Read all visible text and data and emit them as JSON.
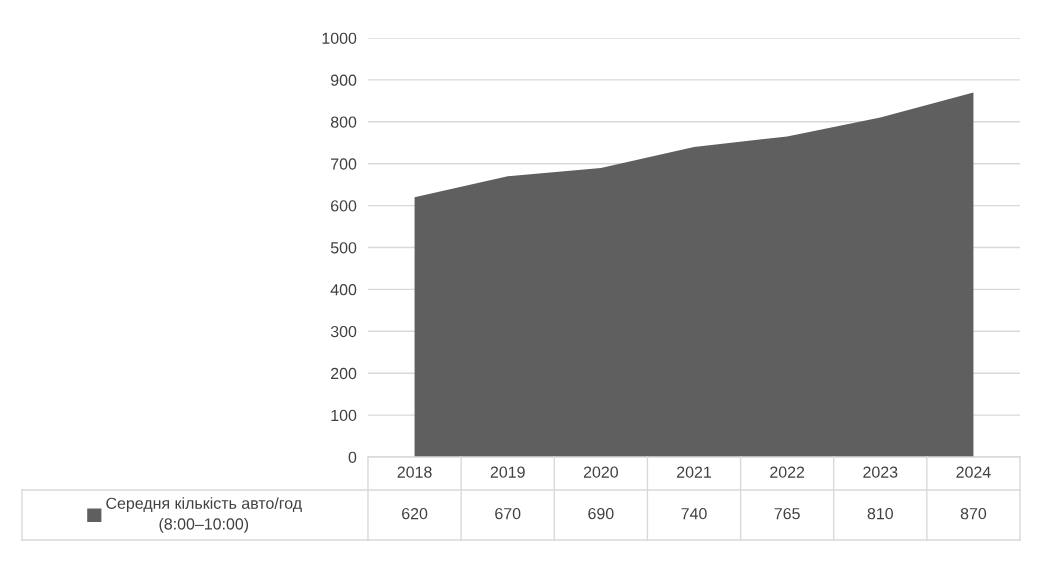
{
  "chart_data": {
    "type": "area",
    "categories": [
      "2018",
      "2019",
      "2020",
      "2021",
      "2022",
      "2023",
      "2024"
    ],
    "series": [
      {
        "name": "Середня кількість авто/год\n(8:00–10:00)",
        "color": "#5f5f5f",
        "values": [
          620,
          670,
          690,
          740,
          765,
          810,
          870
        ]
      }
    ],
    "ylim": [
      0,
      1000
    ],
    "yticks": [
      0,
      100,
      200,
      300,
      400,
      500,
      600,
      700,
      800,
      900,
      1000
    ],
    "grid": "y",
    "legend": "bottom",
    "data_labels": true
  }
}
